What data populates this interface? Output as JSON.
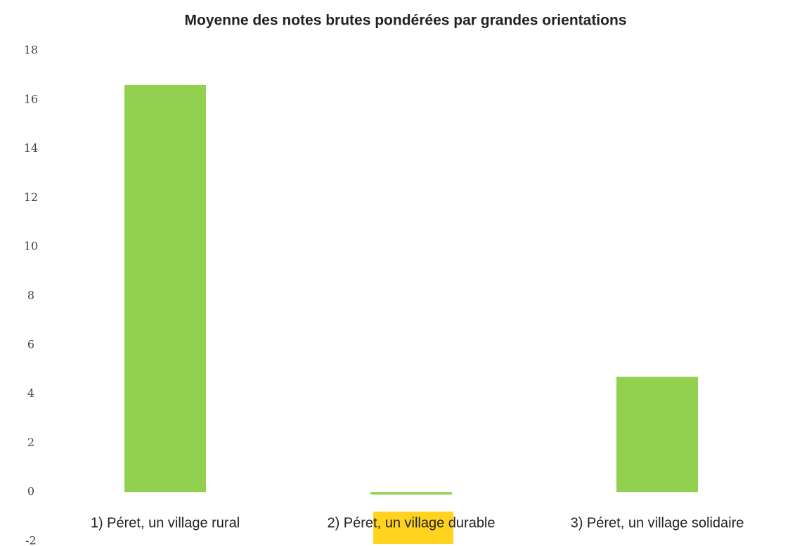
{
  "chart_data": {
    "type": "bar",
    "title": "Moyenne des notes brutes pondérées par grandes orientations",
    "categories": [
      "1) Péret, un village rural",
      "2) Péret, un village durable",
      "3) Péret, un village solidaire"
    ],
    "values": [
      16.6,
      -0.1,
      4.7
    ],
    "color": "#92d050",
    "ylim": [
      -2,
      18
    ],
    "yticks": [
      -2,
      0,
      2,
      4,
      6,
      8,
      10,
      12,
      14,
      16,
      18
    ],
    "grid": false
  }
}
